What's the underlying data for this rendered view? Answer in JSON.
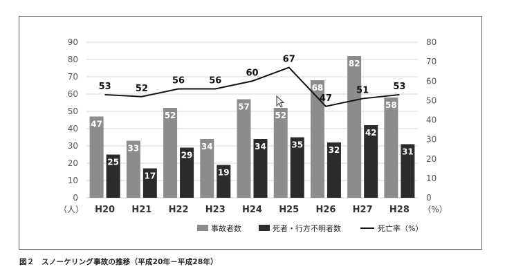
{
  "chart_data": {
    "type": "bar",
    "categories": [
      "H20",
      "H21",
      "H22",
      "H23",
      "H24",
      "H25",
      "H26",
      "H27",
      "H28"
    ],
    "series": [
      {
        "name": "事故者数",
        "kind": "bar",
        "axis": "left",
        "color": "#8c8c8c",
        "values": [
          47,
          33,
          52,
          34,
          57,
          52,
          68,
          82,
          58
        ]
      },
      {
        "name": "死者・行方不明者数",
        "kind": "bar",
        "axis": "left",
        "color": "#2b2b2b",
        "values": [
          25,
          17,
          29,
          19,
          34,
          35,
          32,
          42,
          31
        ]
      },
      {
        "name": "死亡率（%）",
        "kind": "line",
        "axis": "right",
        "color": "#111111",
        "values": [
          53,
          52,
          56,
          56,
          60,
          67,
          47,
          51,
          53
        ]
      }
    ],
    "y_left": {
      "unit_label": "（人）",
      "ticks": [
        0,
        10,
        20,
        30,
        40,
        50,
        60,
        70,
        80,
        90
      ],
      "range": [
        0,
        90
      ]
    },
    "y_right": {
      "unit_label": "（%）",
      "ticks": [
        0,
        10,
        20,
        30,
        40,
        50,
        60,
        70,
        80
      ],
      "range": [
        0,
        80
      ]
    },
    "grid": true,
    "legend_position": "bottom-right",
    "caption": "図２　スノーケリング事故の推移（平成20年－平成28年）"
  }
}
